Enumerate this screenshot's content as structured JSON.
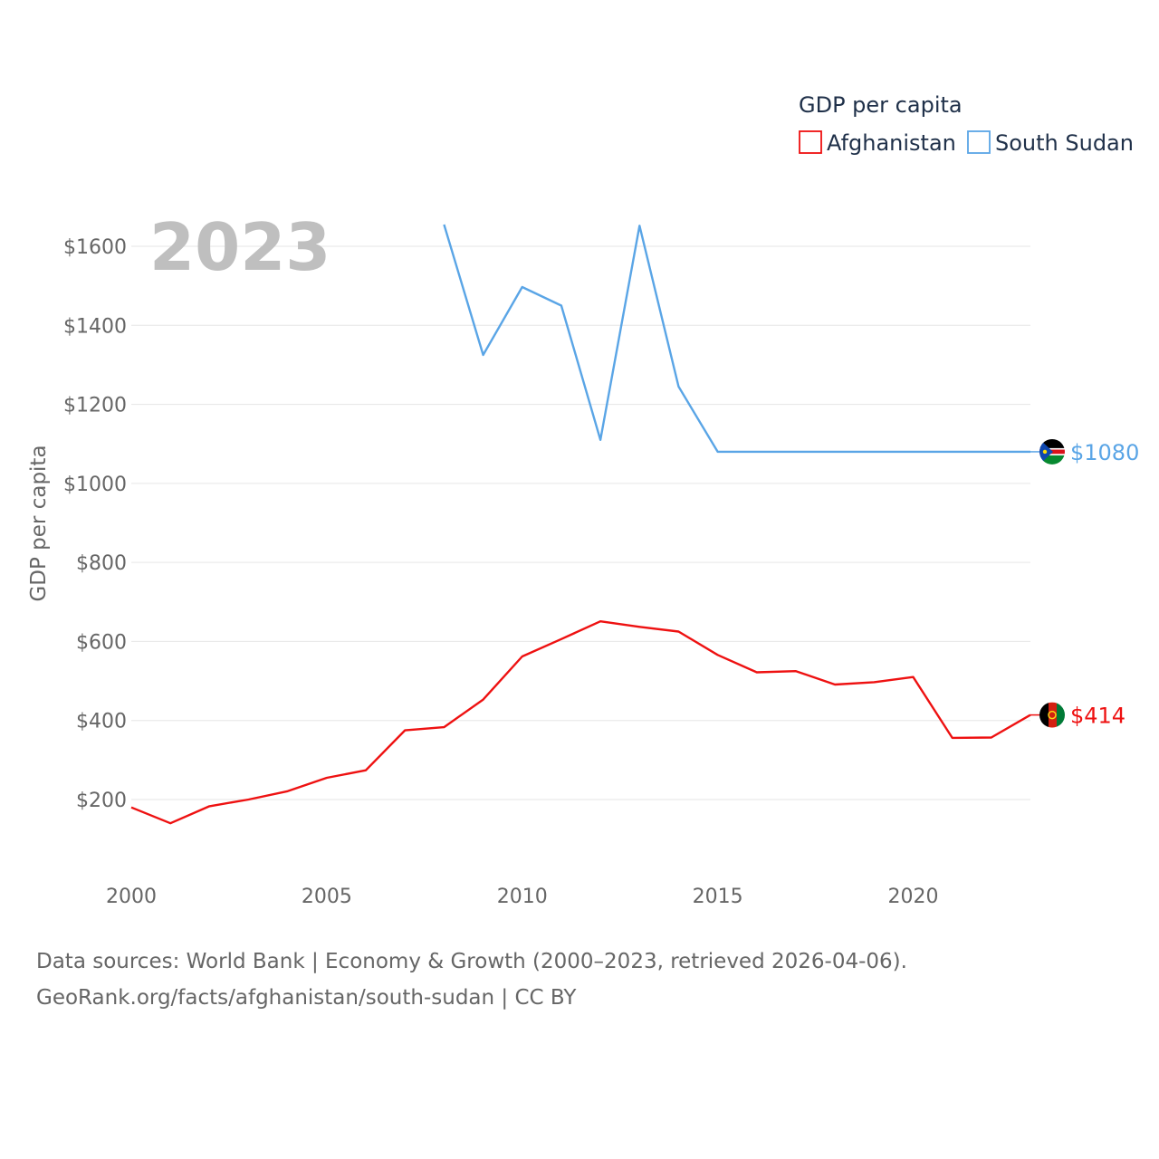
{
  "chart_data": {
    "type": "line",
    "year_label": "2023",
    "ylabel": "GDP per capita",
    "xlim": [
      2000,
      2023
    ],
    "ylim": [
      80,
      1700
    ],
    "x_ticks": [
      2000,
      2005,
      2010,
      2015,
      2020
    ],
    "x_tick_labels": [
      "2000",
      "2005",
      "2010",
      "2015",
      "2020"
    ],
    "y_ticks": [
      200,
      400,
      600,
      800,
      1000,
      1200,
      1400,
      1600
    ],
    "y_tick_labels": [
      "$200",
      "$400",
      "$600",
      "$800",
      "$1000",
      "$1200",
      "$1400",
      "$1600"
    ],
    "legend": {
      "title": "GDP per capita",
      "position": "top-right"
    },
    "series": [
      {
        "name": "Afghanistan",
        "color": "#ee1111",
        "end_label": "$414",
        "flag_colors": [
          "#000000",
          "#d32011",
          "#007a36"
        ],
        "x": [
          2000,
          2001,
          2002,
          2003,
          2004,
          2005,
          2006,
          2007,
          2008,
          2009,
          2010,
          2011,
          2012,
          2013,
          2014,
          2015,
          2016,
          2017,
          2018,
          2019,
          2020,
          2021,
          2022,
          2023
        ],
        "values": [
          180,
          140,
          183,
          200,
          221,
          255,
          274,
          375,
          383,
          453,
          562,
          606,
          651,
          637,
          625,
          566,
          522,
          525,
          491,
          497,
          510,
          356,
          357,
          414
        ]
      },
      {
        "name": "South Sudan",
        "color": "#5aa5e6",
        "end_label": "$1080",
        "flag_colors": [
          "#000000",
          "#da121a",
          "#078930",
          "#0f47af",
          "#fcdd09"
        ],
        "x": [
          2008,
          2009,
          2010,
          2011,
          2012,
          2013,
          2014,
          2015,
          2016,
          2017,
          2018,
          2019,
          2020,
          2021,
          2022,
          2023
        ],
        "values": [
          1655,
          1325,
          1497,
          1450,
          1110,
          1652,
          1245,
          1080,
          1080,
          1080,
          1080,
          1080,
          1080,
          1080,
          1080,
          1080
        ]
      }
    ]
  },
  "source": {
    "line1": "Data sources: World Bank | Economy & Growth (2000–2023, retrieved 2026-04-06).",
    "line2": "GeoRank.org/facts/afghanistan/south-sudan | CC BY"
  }
}
